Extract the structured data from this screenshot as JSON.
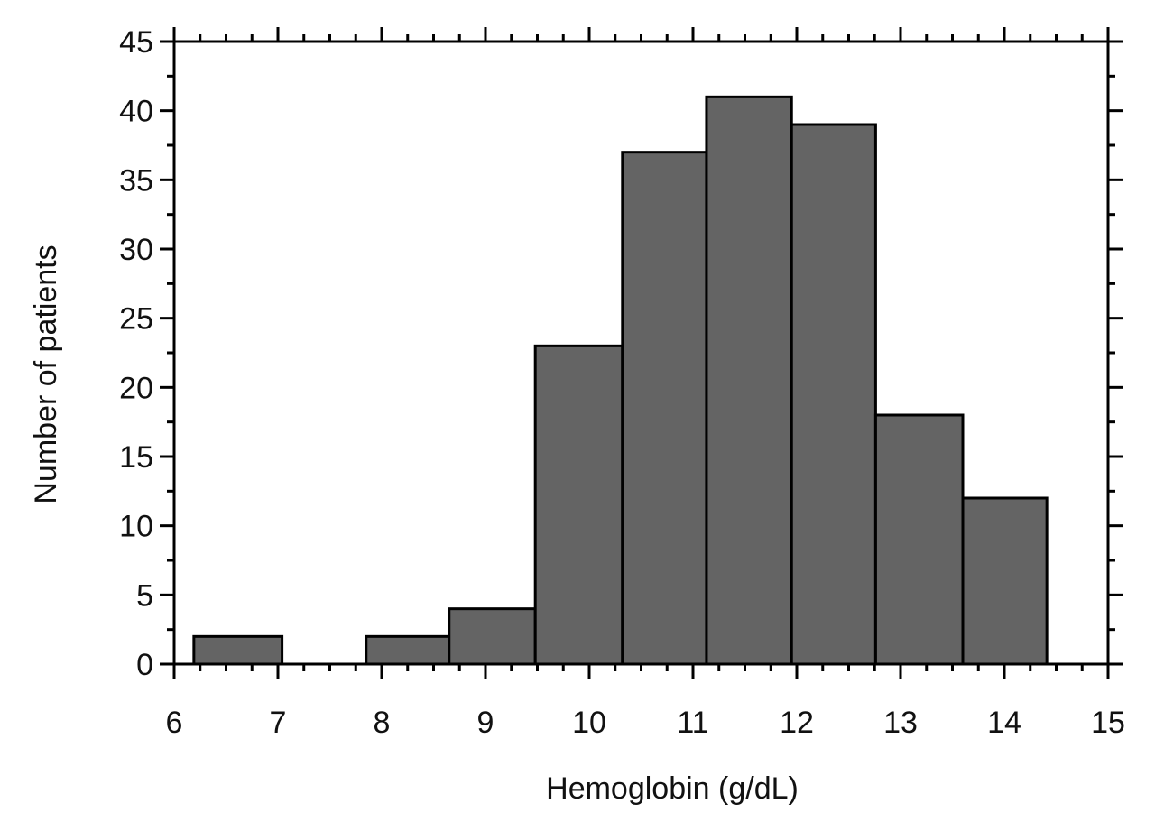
{
  "chart_data": {
    "type": "bar",
    "subtype": "histogram",
    "title": "",
    "xlabel": "Hemoglobin (g/dL)",
    "ylabel": "Number of patients",
    "xlim": [
      6,
      15
    ],
    "ylim": [
      0,
      45
    ],
    "xticks": [
      "6",
      "7",
      "8",
      "9",
      "10",
      "11",
      "12",
      "13",
      "14",
      "15"
    ],
    "yticks": [
      "0",
      "5",
      "10",
      "15",
      "20",
      "25",
      "30",
      "35",
      "40",
      "45"
    ],
    "bins": [
      {
        "start": 6.19,
        "end": 7.04,
        "value": 2
      },
      {
        "start": 7.85,
        "end": 8.65,
        "value": 2
      },
      {
        "start": 8.65,
        "end": 9.48,
        "value": 4
      },
      {
        "start": 9.48,
        "end": 10.32,
        "value": 23
      },
      {
        "start": 10.32,
        "end": 11.13,
        "value": 37
      },
      {
        "start": 11.13,
        "end": 11.95,
        "value": 41
      },
      {
        "start": 11.95,
        "end": 12.76,
        "value": 39
      },
      {
        "start": 12.76,
        "end": 13.6,
        "value": 18
      },
      {
        "start": 13.6,
        "end": 14.41,
        "value": 12
      }
    ],
    "bar_color": "#646464",
    "grid": false,
    "legend": "none"
  }
}
